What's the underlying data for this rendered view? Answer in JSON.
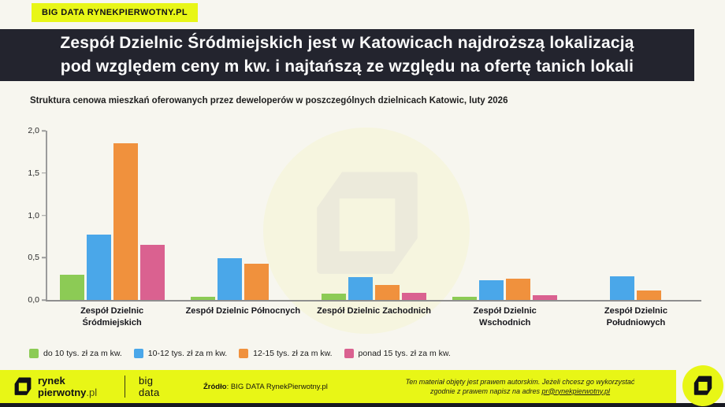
{
  "badge": {
    "label": "BIG DATA RYNEKPIERWOTNY.PL"
  },
  "title": {
    "line1": "Zespół Dzielnic Śródmiejskich jest w Katowicach najdroższą lokalizacją",
    "line2": "pod względem ceny m kw. i najtańszą ze względu na ofertę tanich lokali"
  },
  "subtitle": "Struktura cenowa mieszkań oferowanych przez deweloperów w poszczególnych dzielnicach Katowic, luty 2026",
  "chart_data": {
    "type": "bar",
    "title": "Struktura cenowa mieszkań oferowanych przez deweloperów w poszczególnych dzielnicach Katowic, luty 2026",
    "categories": [
      "Zespół Dzielnic Śródmiejskich",
      "Zespół Dzielnic Północnych",
      "Zespół Dzielnic Zachodnich",
      "Zespół Dzielnic Wschodnich",
      "Zespół Dzielnic Południowych"
    ],
    "category_lines": [
      [
        "Zespół Dzielnic",
        "Śródmiejskich"
      ],
      [
        "Zespół Dzielnic Północnych"
      ],
      [
        "Zespół Dzielnic Zachodnich"
      ],
      [
        "Zespół Dzielnic",
        "Wschodnich"
      ],
      [
        "Zespół Dzielnic",
        "Południowych"
      ]
    ],
    "series": [
      {
        "name": "do 10 tys. zł za m kw.",
        "color": "#8ccb55",
        "values": [
          0.3,
          0.04,
          0.07,
          0.04,
          0
        ]
      },
      {
        "name": "10-12 tys. zł za m kw.",
        "color": "#4aa7e9",
        "values": [
          0.77,
          0.49,
          0.27,
          0.23,
          0.28
        ]
      },
      {
        "name": "12-15 tys. zł za m kw.",
        "color": "#f0913d",
        "values": [
          1.85,
          0.43,
          0.18,
          0.25,
          0.11
        ]
      },
      {
        "name": "ponad 15 tys. zł za m kw.",
        "color": "#da6190",
        "values": [
          0.65,
          0,
          0.08,
          0.06,
          0
        ]
      }
    ],
    "ylim": [
      0,
      2.0
    ],
    "yticks": [
      "0,0",
      "0,5",
      "1,0",
      "1,5",
      "2,0"
    ],
    "ytick_values": [
      0,
      0.5,
      1.0,
      1.5,
      2.0
    ],
    "grid": false,
    "legend_position": "bottom-left",
    "xlabel": "",
    "ylabel": ""
  },
  "footer": {
    "brand_line1": "rynek",
    "brand_line2_bold": "pierwotny",
    "brand_line2_suffix": ".pl",
    "bigdata_line1": "big",
    "bigdata_line2": "data",
    "source_label": "Źródło",
    "source_rest": ": BIG DATA RynekPierwotny.pl",
    "copyright_line1": "Ten materiał objęty jest prawem autorskim. Jeżeli chcesz go wykorzystać",
    "copyright_line2_prefix": "zgodnie z prawem napisz na adres ",
    "copyright_link": "pr@rynekpierwotny.pl"
  },
  "colors": {
    "accent_yellow": "#e8f616",
    "banner_bg": "#23242e",
    "page_bg": "#f7f6ef",
    "bottom_strip": "#171821",
    "axis_gray": "#9b9b9b"
  }
}
